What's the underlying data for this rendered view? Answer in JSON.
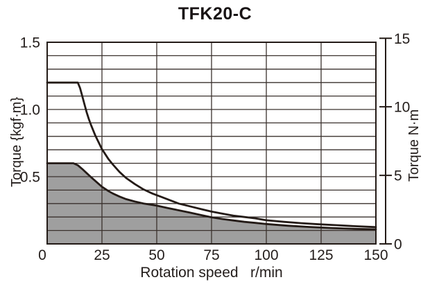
{
  "title": "TFK20-C",
  "chart_data": {
    "type": "area",
    "title": "TFK20-C",
    "xlabel": "Rotation speed   r/min",
    "ylabel_left": "Torque {kgf·m}",
    "ylabel_right": "Torque N·m",
    "xlim": [
      0,
      150
    ],
    "ylim_left": [
      0,
      1.5
    ],
    "ylim_right": [
      0,
      15
    ],
    "nm_per_kgfm": 9.80665,
    "x_grid_step": 25,
    "y_grid_step": 0.1,
    "grid": true,
    "legend": false,
    "x_ticks": [
      {
        "value": 0,
        "label": "0"
      },
      {
        "value": 25,
        "label": "25"
      },
      {
        "value": 50,
        "label": "50"
      },
      {
        "value": 75,
        "label": "75"
      },
      {
        "value": 100,
        "label": "100"
      },
      {
        "value": 125,
        "label": "125"
      },
      {
        "value": 150,
        "label": "150"
      }
    ],
    "y_ticks_left": [
      {
        "value": 0.5,
        "label": "0.5"
      },
      {
        "value": 1.0,
        "label": "1.0"
      },
      {
        "value": 1.5,
        "label": "1.5"
      }
    ],
    "y_ticks_right": [
      {
        "value": 0,
        "label": "0"
      },
      {
        "value": 5,
        "label": "5"
      },
      {
        "value": 10,
        "label": "10"
      },
      {
        "value": 15,
        "label": "15"
      }
    ],
    "series": [
      {
        "name": "max-torque-curve",
        "style": "line",
        "units": "kgf·m",
        "points": [
          [
            0,
            1.2
          ],
          [
            14,
            1.2
          ],
          [
            15,
            1.16
          ],
          [
            16,
            1.1
          ],
          [
            17,
            1.04
          ],
          [
            18,
            0.98
          ],
          [
            19,
            0.93
          ],
          [
            20,
            0.885
          ],
          [
            22,
            0.805
          ],
          [
            25,
            0.705
          ],
          [
            28,
            0.63
          ],
          [
            30,
            0.59
          ],
          [
            33,
            0.535
          ],
          [
            36,
            0.49
          ],
          [
            40,
            0.445
          ],
          [
            44,
            0.405
          ],
          [
            48,
            0.375
          ],
          [
            52,
            0.35
          ],
          [
            56,
            0.325
          ],
          [
            60,
            0.3
          ],
          [
            65,
            0.28
          ],
          [
            70,
            0.26
          ],
          [
            75,
            0.24
          ],
          [
            80,
            0.225
          ],
          [
            85,
            0.21
          ],
          [
            90,
            0.2
          ],
          [
            95,
            0.19
          ],
          [
            100,
            0.176
          ],
          [
            108,
            0.164
          ],
          [
            116,
            0.154
          ],
          [
            124,
            0.146
          ],
          [
            132,
            0.139
          ],
          [
            140,
            0.132
          ],
          [
            150,
            0.125
          ]
        ]
      },
      {
        "name": "continuous-torque-area",
        "style": "area",
        "units": "kgf·m",
        "points": [
          [
            0,
            0.6
          ],
          [
            12,
            0.6
          ],
          [
            14,
            0.585
          ],
          [
            16,
            0.557
          ],
          [
            18,
            0.527
          ],
          [
            20,
            0.497
          ],
          [
            22,
            0.468
          ],
          [
            25,
            0.425
          ],
          [
            28,
            0.393
          ],
          [
            30,
            0.375
          ],
          [
            33,
            0.352
          ],
          [
            36,
            0.333
          ],
          [
            40,
            0.315
          ],
          [
            44,
            0.3
          ],
          [
            48,
            0.29
          ],
          [
            50,
            0.285
          ],
          [
            55,
            0.267
          ],
          [
            60,
            0.25
          ],
          [
            65,
            0.233
          ],
          [
            70,
            0.215
          ],
          [
            75,
            0.198
          ],
          [
            80,
            0.185
          ],
          [
            85,
            0.174
          ],
          [
            90,
            0.164
          ],
          [
            95,
            0.156
          ],
          [
            100,
            0.148
          ],
          [
            110,
            0.135
          ],
          [
            120,
            0.126
          ],
          [
            130,
            0.118
          ],
          [
            140,
            0.112
          ],
          [
            150,
            0.108
          ]
        ]
      }
    ],
    "colors": {
      "line": "#241b17",
      "grid": "#3a312d",
      "border": "#241b17",
      "fill": "#9f9f9f",
      "text": "#231d1b",
      "background": "#ffffff"
    }
  }
}
